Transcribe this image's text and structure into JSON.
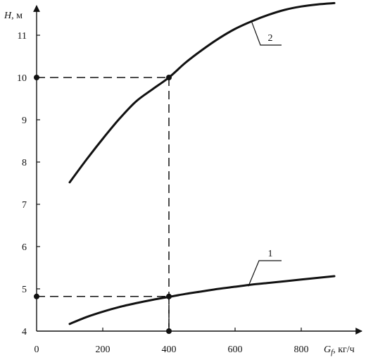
{
  "chart_data": {
    "type": "line",
    "title": "",
    "xlabel": {
      "symbol": "G",
      "subscript": "f",
      "unit": ", кг/ч"
    },
    "ylabel": {
      "symbol": "H",
      "unit": ", м"
    },
    "xlim": [
      0,
      900
    ],
    "ylim": [
      4,
      11.75
    ],
    "x_ticks": [
      "0",
      "200",
      "400",
      "600",
      "800"
    ],
    "y_ticks": [
      "4",
      "5",
      "6",
      "7",
      "8",
      "9",
      "10",
      "11"
    ],
    "grid": false,
    "series": [
      {
        "label": "1",
        "x": [
          100,
          150,
          200,
          250,
          300,
          350,
          400,
          450,
          500,
          550,
          600,
          650,
          700,
          750,
          800,
          850,
          900
        ],
        "y": [
          4.17,
          4.33,
          4.46,
          4.57,
          4.66,
          4.74,
          4.81,
          4.88,
          4.94,
          5.0,
          5.05,
          5.1,
          5.14,
          5.18,
          5.22,
          5.26,
          5.3
        ]
      },
      {
        "label": "2",
        "x": [
          100,
          150,
          200,
          250,
          300,
          350,
          400,
          450,
          500,
          550,
          600,
          650,
          700,
          750,
          800,
          850,
          900
        ],
        "y": [
          7.52,
          8.05,
          8.55,
          9.02,
          9.43,
          9.72,
          10.0,
          10.35,
          10.65,
          10.92,
          11.15,
          11.33,
          11.48,
          11.6,
          11.68,
          11.73,
          11.76
        ]
      }
    ],
    "annotations": [
      {
        "type": "reference-lines",
        "x": 400,
        "y": 10.0,
        "style": "dashed"
      },
      {
        "type": "reference-lines",
        "x": 400,
        "y": 4.82,
        "style": "dashed"
      }
    ]
  }
}
